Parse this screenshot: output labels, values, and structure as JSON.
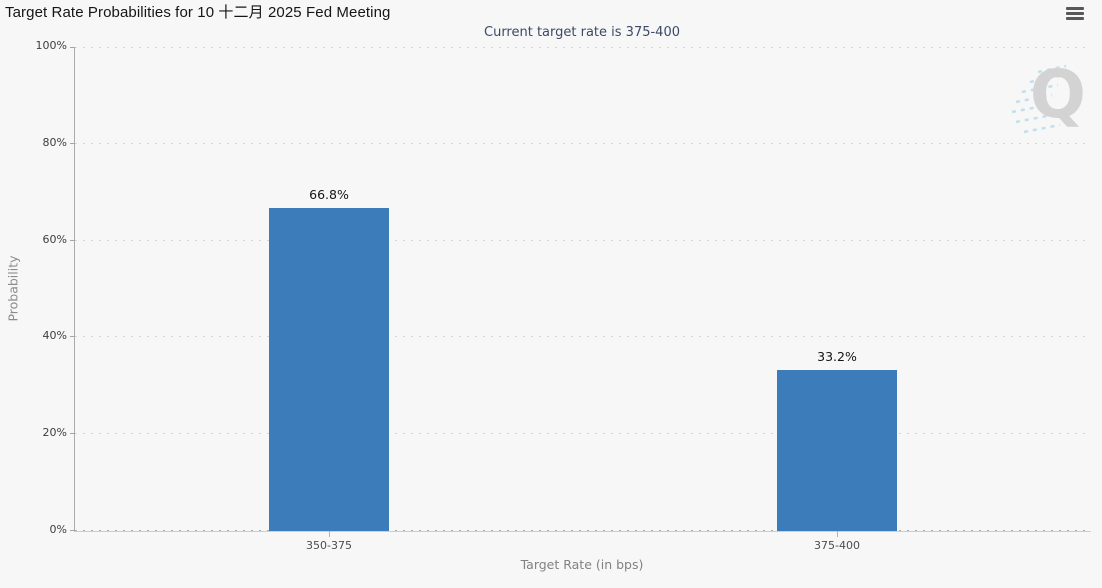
{
  "header": {
    "title": "Target Rate Probabilities for 10 十二月 2025 Fed Meeting"
  },
  "menu": {
    "icon": "hamburger-menu-icon"
  },
  "watermark": {
    "letter": "Q"
  },
  "chart_data": {
    "type": "bar",
    "title": "Target Rate Probabilities for 10 十二月 2025 Fed Meeting",
    "subtitle": "Current target rate is 375-400",
    "categories": [
      "350-375",
      "375-400"
    ],
    "values": [
      66.8,
      33.2
    ],
    "value_labels": [
      "66.8%",
      "33.2%"
    ],
    "xlabel": "Target Rate (in bps)",
    "ylabel": "Probability",
    "ylim": [
      0,
      100
    ],
    "ytick_step": 20,
    "ytick_labels": [
      "0%",
      "20%",
      "40%",
      "60%",
      "80%",
      "100%"
    ],
    "grid": "horizontal-dotted",
    "legend": "none"
  },
  "colors": {
    "background": "#f7f7f7",
    "bar": "#3d7cba",
    "subtitle_text": "#3b4a66",
    "gridline": "#d5d5d7",
    "axis_line": "#aaabad",
    "watermark_gray": "#d3d3d3",
    "watermark_blue": "#c2dfee",
    "menu_icon": "#58585a"
  }
}
